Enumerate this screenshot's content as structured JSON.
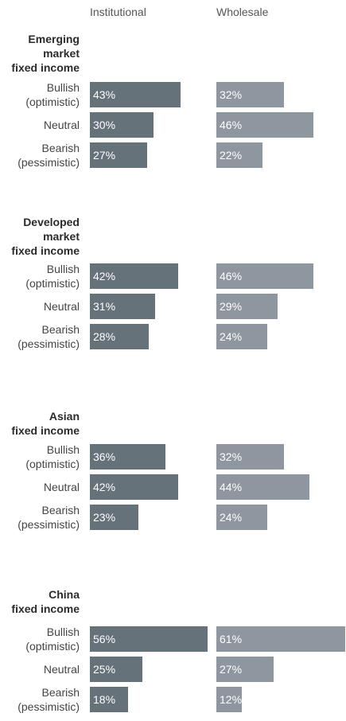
{
  "chart_data": {
    "type": "bar",
    "orientation": "horizontal",
    "columns": [
      "Institutional",
      "Wholesale"
    ],
    "colors": {
      "Institutional": "#66727a",
      "Wholesale": "#8e979f"
    },
    "xlim": [
      0,
      61
    ],
    "groups": [
      {
        "title": "Emerging market fixed income",
        "title_lines": [
          "Emerging",
          "market",
          "fixed income"
        ],
        "categories": [
          {
            "label_lines": [
              "Bullish",
              "(optimistic)"
            ],
            "Institutional": 43,
            "Wholesale": 32
          },
          {
            "label_lines": [
              "Neutral"
            ],
            "Institutional": 30,
            "Wholesale": 46
          },
          {
            "label_lines": [
              "Bearish",
              "(pessimistic)"
            ],
            "Institutional": 27,
            "Wholesale": 22
          }
        ]
      },
      {
        "title": "Developed market fixed income",
        "title_lines": [
          "Developed",
          "market",
          "fixed income"
        ],
        "categories": [
          {
            "label_lines": [
              "Bullish",
              "(optimistic)"
            ],
            "Institutional": 42,
            "Wholesale": 46
          },
          {
            "label_lines": [
              "Neutral"
            ],
            "Institutional": 31,
            "Wholesale": 29
          },
          {
            "label_lines": [
              "Bearish",
              "(pessimistic)"
            ],
            "Institutional": 28,
            "Wholesale": 24
          }
        ]
      },
      {
        "title": "Asian fixed income",
        "title_lines": [
          "Asian",
          "fixed income"
        ],
        "categories": [
          {
            "label_lines": [
              "Bullish",
              "(optimistic)"
            ],
            "Institutional": 36,
            "Wholesale": 32
          },
          {
            "label_lines": [
              "Neutral"
            ],
            "Institutional": 42,
            "Wholesale": 44
          },
          {
            "label_lines": [
              "Bearish",
              "(pessimistic)"
            ],
            "Institutional": 23,
            "Wholesale": 24
          }
        ]
      },
      {
        "title": "China fixed income",
        "title_lines": [
          "China",
          "fixed income"
        ],
        "categories": [
          {
            "label_lines": [
              "Bullish",
              "(optimistic)"
            ],
            "Institutional": 56,
            "Wholesale": 61
          },
          {
            "label_lines": [
              "Neutral"
            ],
            "Institutional": 25,
            "Wholesale": 27
          },
          {
            "label_lines": [
              "Bearish",
              "(pessimistic)"
            ],
            "Institutional": 18,
            "Wholesale": 12
          }
        ]
      }
    ],
    "value_suffix": "%"
  }
}
